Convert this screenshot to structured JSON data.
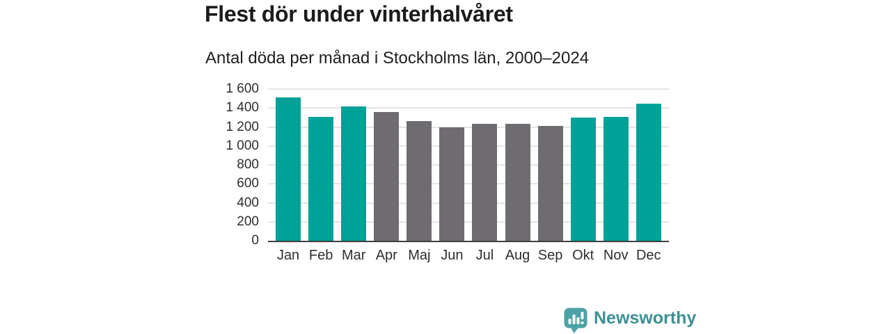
{
  "chart_data": {
    "type": "bar",
    "title": "Flest dör under vinterhalvåret",
    "subtitle": "Antal döda per månad i Stockholms län, 2000–2024",
    "categories": [
      "Jan",
      "Feb",
      "Mar",
      "Apr",
      "Maj",
      "Jun",
      "Jul",
      "Aug",
      "Sep",
      "Okt",
      "Nov",
      "Dec"
    ],
    "values": [
      1510,
      1310,
      1420,
      1360,
      1265,
      1195,
      1235,
      1230,
      1210,
      1300,
      1310,
      1445
    ],
    "bar_groups": [
      "winter",
      "winter",
      "winter",
      "summer",
      "summer",
      "summer",
      "summer",
      "summer",
      "summer",
      "winter",
      "winter",
      "winter"
    ],
    "group_colors": {
      "winter": "#00A197",
      "summer": "#6E6C71"
    },
    "yticks": [
      {
        "label": "1 600",
        "value": 1600
      },
      {
        "label": "1 400",
        "value": 1400
      },
      {
        "label": "1 200",
        "value": 1200
      },
      {
        "label": "1 000",
        "value": 1000
      },
      {
        "label": "800",
        "value": 800
      },
      {
        "label": "600",
        "value": 600
      },
      {
        "label": "400",
        "value": 400
      },
      {
        "label": "200",
        "value": 200
      },
      {
        "label": "0",
        "value": 0
      }
    ],
    "ylim": [
      0,
      1600
    ],
    "xlabel": "",
    "ylabel": "",
    "grid": true,
    "legend": "none"
  },
  "branding": {
    "logo_text": "Newsworthy",
    "logo_text_color": "#3E9093",
    "logo_icon_color": "#4CA2A4",
    "logo_icon": "bar-chart-speech-bubble"
  },
  "theme": {
    "background": "#FFFFFF",
    "axis_color": "#3F3F3F",
    "gridline_color": "#E4E4E4",
    "title_color": "#1B1B1B",
    "tick_color": "#2E2E2E"
  }
}
